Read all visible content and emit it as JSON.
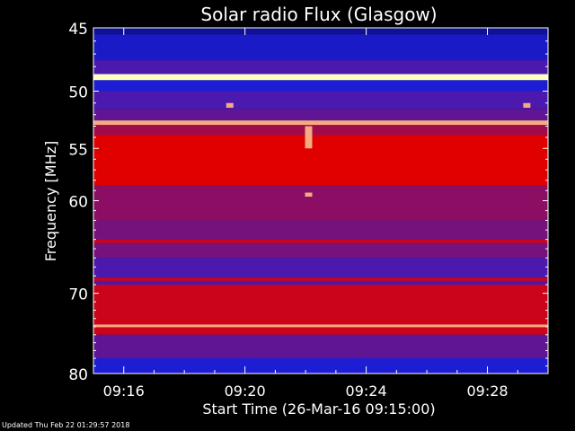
{
  "chart_data": {
    "type": "heatmap",
    "title": "Solar radio Flux (Glasgow)",
    "xlabel": "Start Time (26-Mar-16 09:15:00)",
    "ylabel": "Frequency [MHz]",
    "ylim": [
      45,
      80
    ],
    "xlim_minutes": [
      0,
      15
    ],
    "x_ticks": [
      "09:16",
      "09:20",
      "09:24",
      "09:28"
    ],
    "x_tick_minutes": [
      1,
      5,
      9,
      13
    ],
    "y_ticks": [
      45,
      50,
      55,
      60,
      70,
      80
    ],
    "y_scale": "log",
    "colormap": "blue-red",
    "colors": {
      "background": "#000000",
      "low": "#0a0a78",
      "mid": "#2020e0",
      "high": "#e00000",
      "peak": "#ffffc0"
    },
    "bands": [
      {
        "freq": [
          45.0,
          45.5
        ],
        "level": 0.1
      },
      {
        "freq": [
          45.5,
          47.5
        ],
        "level": 0.3
      },
      {
        "freq": [
          47.5,
          48.6
        ],
        "level": 0.5
      },
      {
        "freq": [
          48.6,
          49.1
        ],
        "level": 1.0
      },
      {
        "freq": [
          49.1,
          50.0
        ],
        "level": 0.35
      },
      {
        "freq": [
          50.0,
          51.5
        ],
        "level": 0.5
      },
      {
        "freq": [
          51.5,
          52.5
        ],
        "level": 0.55
      },
      {
        "freq": [
          52.5,
          52.9
        ],
        "level": 0.95
      },
      {
        "freq": [
          52.9,
          53.8
        ],
        "level": 0.7
      },
      {
        "freq": [
          53.8,
          58.5
        ],
        "level": 0.85
      },
      {
        "freq": [
          58.5,
          62.0
        ],
        "level": 0.65
      },
      {
        "freq": [
          62.0,
          66.0
        ],
        "level": 0.6
      },
      {
        "freq": [
          66.0,
          69.0
        ],
        "level": 0.5
      },
      {
        "freq": [
          69.0,
          75.0
        ],
        "level": 0.8
      },
      {
        "freq": [
          75.0,
          78.0
        ],
        "level": 0.55
      },
      {
        "freq": [
          78.0,
          80.0
        ],
        "level": 0.35
      }
    ],
    "lines": [
      {
        "freq": 48.85,
        "level": 1.0
      },
      {
        "freq": 52.7,
        "level": 0.95
      },
      {
        "freq": 64.2,
        "level": 0.85
      },
      {
        "freq": 68.4,
        "level": 0.85
      },
      {
        "freq": 73.9,
        "level": 0.95
      }
    ],
    "events": [
      {
        "minute": 7.1,
        "freq": [
          53.0,
          55.0
        ],
        "level": 0.95
      },
      {
        "minute": 7.1,
        "freq": [
          59.2,
          59.6
        ],
        "level": 0.95
      },
      {
        "minute": 4.5,
        "freq": [
          51.0,
          51.4
        ],
        "level": 0.95
      },
      {
        "minute": 14.3,
        "freq": [
          51.0,
          51.4
        ],
        "level": 0.95
      }
    ]
  },
  "footer": {
    "updated": "Updated Thu Feb 22 01:29:57 2018"
  }
}
